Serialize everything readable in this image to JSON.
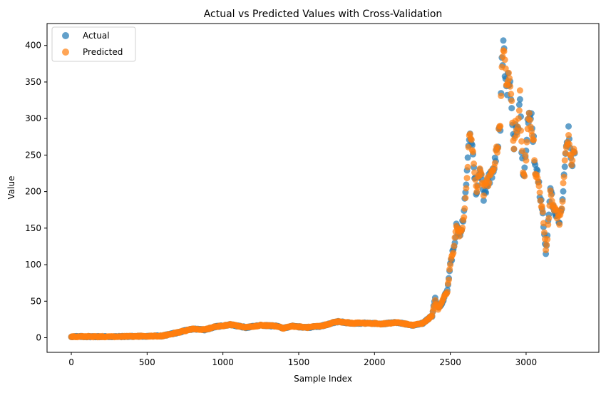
{
  "chart_data": {
    "type": "scatter",
    "title": "Actual vs Predicted Values with Cross-Validation",
    "xlabel": "Sample Index",
    "ylabel": "Value",
    "xlim": [
      -160,
      3480
    ],
    "ylim": [
      -20,
      430
    ],
    "xticks": [
      0,
      500,
      1000,
      1500,
      2000,
      2500,
      3000
    ],
    "yticks": [
      0,
      50,
      100,
      150,
      200,
      250,
      300,
      350,
      400
    ],
    "grid": false,
    "legend_position": "upper-left",
    "colors": {
      "actual": "#1f77b4",
      "predicted": "#ff7f0e"
    },
    "series": [
      {
        "name": "Actual",
        "color": "#1f77b4",
        "x_start": 0,
        "x_end": 3320,
        "keypoints": [
          [
            0,
            1.5
          ],
          [
            300,
            1.5
          ],
          [
            600,
            2.5
          ],
          [
            700,
            7
          ],
          [
            800,
            12
          ],
          [
            880,
            11
          ],
          [
            950,
            15
          ],
          [
            1050,
            18
          ],
          [
            1150,
            14
          ],
          [
            1250,
            17
          ],
          [
            1350,
            16
          ],
          [
            1400,
            13
          ],
          [
            1450,
            16
          ],
          [
            1550,
            14
          ],
          [
            1650,
            16
          ],
          [
            1750,
            22
          ],
          [
            1850,
            20
          ],
          [
            1950,
            20
          ],
          [
            2050,
            19
          ],
          [
            2150,
            21
          ],
          [
            2250,
            17
          ],
          [
            2320,
            20
          ],
          [
            2380,
            30
          ],
          [
            2400,
            55
          ],
          [
            2420,
            40
          ],
          [
            2450,
            50
          ],
          [
            2480,
            65
          ],
          [
            2500,
            100
          ],
          [
            2520,
            120
          ],
          [
            2540,
            150
          ],
          [
            2570,
            140
          ],
          [
            2590,
            170
          ],
          [
            2610,
            230
          ],
          [
            2630,
            285
          ],
          [
            2650,
            250
          ],
          [
            2670,
            200
          ],
          [
            2700,
            230
          ],
          [
            2720,
            195
          ],
          [
            2750,
            215
          ],
          [
            2780,
            230
          ],
          [
            2800,
            250
          ],
          [
            2830,
            290
          ],
          [
            2840,
            370
          ],
          [
            2850,
            400
          ],
          [
            2870,
            340
          ],
          [
            2890,
            360
          ],
          [
            2910,
            300
          ],
          [
            2920,
            255
          ],
          [
            2930,
            300
          ],
          [
            2945,
            280
          ],
          [
            2960,
            330
          ],
          [
            2970,
            260
          ],
          [
            2985,
            215
          ],
          [
            3000,
            250
          ],
          [
            3010,
            300
          ],
          [
            3030,
            305
          ],
          [
            3050,
            270
          ],
          [
            3060,
            230
          ],
          [
            3080,
            220
          ],
          [
            3090,
            195
          ],
          [
            3110,
            170
          ],
          [
            3130,
            115
          ],
          [
            3140,
            140
          ],
          [
            3160,
            200
          ],
          [
            3180,
            180
          ],
          [
            3200,
            170
          ],
          [
            3220,
            160
          ],
          [
            3240,
            190
          ],
          [
            3260,
            255
          ],
          [
            3280,
            280
          ],
          [
            3300,
            240
          ],
          [
            3320,
            255
          ]
        ]
      },
      {
        "name": "Predicted",
        "color": "#ff7f0e",
        "x_start": 0,
        "x_end": 3320,
        "keypoints": [
          [
            0,
            1.5
          ],
          [
            300,
            1.5
          ],
          [
            600,
            2.5
          ],
          [
            700,
            7
          ],
          [
            800,
            12
          ],
          [
            880,
            11
          ],
          [
            950,
            15
          ],
          [
            1050,
            18
          ],
          [
            1150,
            14
          ],
          [
            1250,
            17
          ],
          [
            1350,
            16
          ],
          [
            1400,
            13
          ],
          [
            1450,
            16
          ],
          [
            1550,
            14
          ],
          [
            1650,
            16
          ],
          [
            1750,
            22
          ],
          [
            1850,
            20
          ],
          [
            1950,
            20
          ],
          [
            2050,
            19
          ],
          [
            2150,
            21
          ],
          [
            2250,
            17
          ],
          [
            2320,
            20
          ],
          [
            2380,
            30
          ],
          [
            2400,
            50
          ],
          [
            2420,
            40
          ],
          [
            2450,
            50
          ],
          [
            2480,
            65
          ],
          [
            2500,
            100
          ],
          [
            2520,
            120
          ],
          [
            2540,
            150
          ],
          [
            2570,
            140
          ],
          [
            2590,
            170
          ],
          [
            2610,
            225
          ],
          [
            2630,
            280
          ],
          [
            2650,
            250
          ],
          [
            2670,
            200
          ],
          [
            2700,
            230
          ],
          [
            2720,
            200
          ],
          [
            2750,
            215
          ],
          [
            2780,
            230
          ],
          [
            2800,
            250
          ],
          [
            2830,
            290
          ],
          [
            2840,
            365
          ],
          [
            2850,
            395
          ],
          [
            2870,
            345
          ],
          [
            2890,
            360
          ],
          [
            2910,
            300
          ],
          [
            2920,
            260
          ],
          [
            2930,
            300
          ],
          [
            2945,
            280
          ],
          [
            2960,
            330
          ],
          [
            2970,
            260
          ],
          [
            2985,
            220
          ],
          [
            3000,
            250
          ],
          [
            3010,
            295
          ],
          [
            3030,
            300
          ],
          [
            3050,
            270
          ],
          [
            3060,
            230
          ],
          [
            3080,
            220
          ],
          [
            3090,
            195
          ],
          [
            3110,
            170
          ],
          [
            3130,
            120
          ],
          [
            3140,
            140
          ],
          [
            3160,
            195
          ],
          [
            3180,
            180
          ],
          [
            3200,
            170
          ],
          [
            3220,
            160
          ],
          [
            3240,
            190
          ],
          [
            3260,
            255
          ],
          [
            3280,
            275
          ],
          [
            3300,
            240
          ],
          [
            3320,
            255
          ]
        ]
      }
    ]
  }
}
